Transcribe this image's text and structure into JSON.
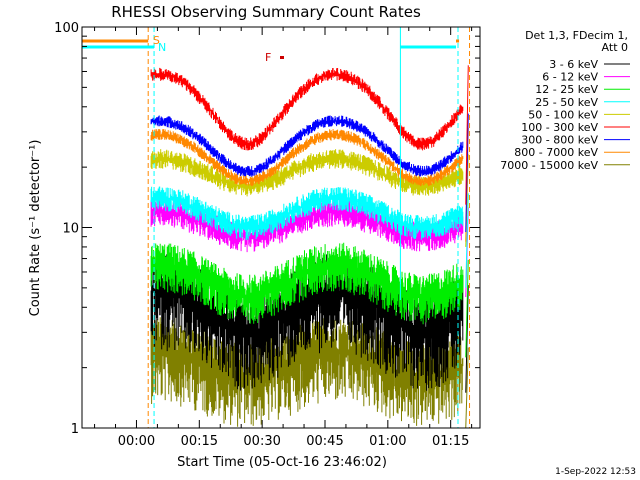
{
  "chart_data": {
    "type": "line",
    "title": "RHESSI Observing Summary Count Rates",
    "xlabel": "Start Time (05-Oct-16 23:46:02)",
    "ylabel": "Count Rate (s⁻¹ detector⁻¹)",
    "y_scale": "log",
    "ylim": [
      1,
      100
    ],
    "xlim_minutes": [
      -13,
      82
    ],
    "x_tick_labels": [
      "00:00",
      "00:15",
      "00:30",
      "00:45",
      "01:00",
      "01:15"
    ],
    "x_tick_minutes": [
      0,
      15,
      30,
      45,
      60,
      75
    ],
    "y_tick_labels": [
      "1",
      "10",
      "100"
    ],
    "y_tick_values": [
      1,
      10,
      100
    ],
    "legend_header": [
      "Det 1,3, FDecim 1,",
      "Att 0"
    ],
    "legend_placement": "right",
    "series": [
      {
        "name": "3 - 6 keV",
        "color": "#000000",
        "base": 3.0,
        "amp": 1.8,
        "noise": 0.55
      },
      {
        "name": "6 - 12 keV",
        "color": "#ff00ff",
        "base": 9.0,
        "amp": 3.0,
        "noise": 0.18
      },
      {
        "name": "12 - 25 keV",
        "color": "#00ee00",
        "base": 4.5,
        "amp": 2.0,
        "noise": 0.3
      },
      {
        "name": "25 - 50 keV",
        "color": "#00ffff",
        "base": 10.0,
        "amp": 4.0,
        "noise": 0.15
      },
      {
        "name": "50 - 100 keV",
        "color": "#cccc00",
        "base": 16.0,
        "amp": 6.0,
        "noise": 0.12
      },
      {
        "name": "100 - 300 keV",
        "color": "#ff0000",
        "base": 26.0,
        "amp": 32.0,
        "noise": 0.08
      },
      {
        "name": "300 - 800 keV",
        "color": "#0000ff",
        "base": 19.0,
        "amp": 15.0,
        "noise": 0.07
      },
      {
        "name": "800 - 7000 keV",
        "color": "#ff8800",
        "base": 17.0,
        "amp": 12.0,
        "noise": 0.07
      },
      {
        "name": "7000 - 15000 keV",
        "color": "#808000",
        "base": 1.8,
        "amp": 0.6,
        "noise": 0.5
      }
    ],
    "annotations": [
      {
        "label": "S",
        "color": "#ff8800"
      },
      {
        "label": "N",
        "color": "#00ffff"
      },
      {
        "label": "F",
        "color": "#cc0000"
      }
    ]
  },
  "footer_timestamp": "1-Sep-2022 12:53"
}
